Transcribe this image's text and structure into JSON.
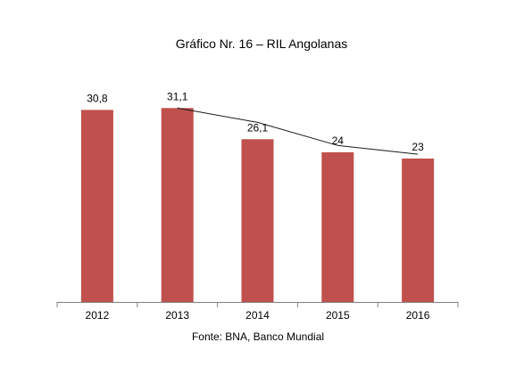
{
  "chart_data": {
    "type": "bar",
    "title": "Gráfico Nr. 16 – RIL Angolanas",
    "source": "Fonte: BNA, Banco Mundial",
    "categories": [
      "2012",
      "2013",
      "2014",
      "2015",
      "2016"
    ],
    "values": [
      30.8,
      31.1,
      26.1,
      24,
      23
    ],
    "value_labels": [
      "30,8",
      "31,1",
      "26,1",
      "24",
      "23"
    ],
    "line_values": [
      31.1,
      28.8,
      25.1,
      23.7
    ],
    "line_categories": [
      "2013",
      "2014",
      "2015",
      "2016"
    ],
    "ylim": [
      0,
      40
    ],
    "grid": false,
    "xlabel": "",
    "ylabel": "",
    "colors": {
      "bar": "#C0504D",
      "line": "#1a1a1a",
      "axis": "#7f7f7f"
    }
  }
}
